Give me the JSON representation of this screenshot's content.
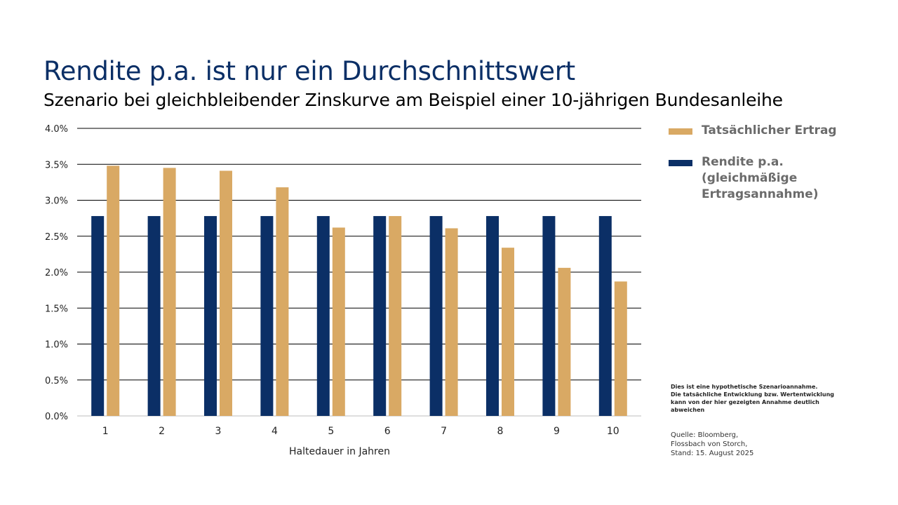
{
  "title": "Rendite p.a. ist nur ein Durchschnittswert",
  "subtitle": "Szenario bei gleichbleibender Zinskurve am Beispiel einer 10-jährigen Bundesanleihe",
  "legend": [
    {
      "label": "Tatsächlicher Ertrag",
      "color": "#d9a964"
    },
    {
      "label": "Rendite p.a. (gleichmäßige Ertragsannahme)",
      "color": "#0b2f66"
    }
  ],
  "disclaimer": [
    "Dies ist eine hypothetische Szenarioannahme.",
    "Die tatsächliche Entwicklung bzw. Wertentwicklung",
    "kann von der hier gezeigten Annahme deutlich",
    "abweichen"
  ],
  "source": [
    "Quelle: Bloomberg,",
    "Flossbach von Storch,",
    "Stand: 15. August 2025"
  ],
  "chart_data": {
    "type": "bar",
    "categories": [
      "1",
      "2",
      "3",
      "4",
      "5",
      "6",
      "7",
      "8",
      "9",
      "10"
    ],
    "series": [
      {
        "name": "Rendite p.a. (gleichmäßige Ertragsannahme)",
        "color": "#0b2f66",
        "values": [
          2.78,
          2.78,
          2.78,
          2.78,
          2.78,
          2.78,
          2.78,
          2.78,
          2.78,
          2.78
        ]
      },
      {
        "name": "Tatsächlicher Ertrag",
        "color": "#d9a964",
        "values": [
          3.48,
          3.45,
          3.41,
          3.18,
          2.62,
          2.78,
          2.61,
          2.34,
          2.06,
          1.87
        ]
      }
    ],
    "xlabel": "Haltedauer in Jahren",
    "ylabel": "",
    "ylim": [
      0,
      4
    ],
    "yticks": [
      "0.0%",
      "0.5%",
      "1.0%",
      "1.5%",
      "2.0%",
      "2.5%",
      "3.0%",
      "3.5%",
      "4.0%"
    ],
    "grid": true,
    "legend_position": "right"
  }
}
